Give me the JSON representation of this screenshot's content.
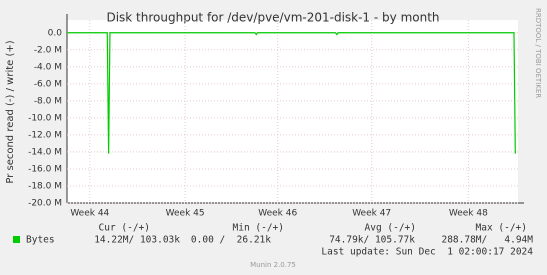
{
  "chart_data": {
    "type": "line",
    "title": "Disk throughput for /dev/pve/vm-201-disk-1 - by month",
    "y_label": "Pr second read (-) / write (+)",
    "watermark": "RRDTOOL / TOBI OETIKER",
    "xlim": [
      0,
      33.6
    ],
    "xticks": [
      {
        "value": 1.7,
        "label": "Week 44"
      },
      {
        "value": 8.8,
        "label": "Week 45"
      },
      {
        "value": 15.7,
        "label": "Week 46"
      },
      {
        "value": 22.7,
        "label": "Week 47"
      },
      {
        "value": 29.9,
        "label": "Week 48"
      }
    ],
    "ylim": [
      -20,
      1.5
    ],
    "yticks": [
      {
        "value": 0,
        "label": "0.0"
      },
      {
        "value": -2,
        "label": "-2.0 M"
      },
      {
        "value": -4,
        "label": "-4.0 M"
      },
      {
        "value": -6,
        "label": "-6.0 M"
      },
      {
        "value": -8,
        "label": "-8.0 M"
      },
      {
        "value": -10,
        "label": "-10.0 M"
      },
      {
        "value": -12,
        "label": "-12.0 M"
      },
      {
        "value": -14,
        "label": "-14.0 M"
      },
      {
        "value": -16,
        "label": "-16.0 M"
      },
      {
        "value": -18,
        "label": "-18.0 M"
      },
      {
        "value": -20,
        "label": "-20.0 M"
      }
    ],
    "grid": true,
    "series": [
      {
        "name": "Bytes",
        "color": "#00cc00",
        "x": [
          0,
          3.0,
          3.1,
          3.2,
          14,
          14.1,
          14.2,
          20,
          20.1,
          20.2,
          33.3,
          33.4
        ],
        "values": [
          0,
          0,
          -14.2,
          0,
          0,
          -0.2,
          0,
          0,
          -0.2,
          0,
          0,
          -14.2
        ]
      }
    ],
    "stats": {
      "headers": [
        "Cur (-/+)",
        "Min (-/+)",
        "Avg (-/+)",
        "Max (-/+)"
      ],
      "cells": [
        "14.22M/ 103.03k",
        "0.00 /  26.21k",
        "74.79k/ 105.77k",
        "288.78M/   4.94M"
      ]
    },
    "last_update": "Last update: Sun Dec  1 02:00:17 2024",
    "footer": "Munin 2.0.75"
  }
}
